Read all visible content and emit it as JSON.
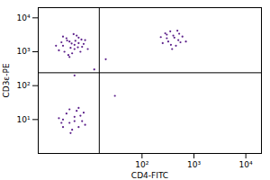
{
  "chart_data": {
    "type": "scatter",
    "x_label": "CD4-FITC",
    "y_label": "CD3ε-PE",
    "log": true,
    "grid": false,
    "color": "#5b1f8a",
    "xlim": [
      1,
      20000
    ],
    "ylim": [
      1,
      20000
    ],
    "xticks": [
      {
        "value": 100,
        "label": "10²"
      },
      {
        "value": 1000,
        "label": "10³"
      },
      {
        "value": 10000,
        "label": "10⁴"
      }
    ],
    "yticks": [
      {
        "value": 10,
        "label": "10¹"
      },
      {
        "value": 100,
        "label": "10²"
      },
      {
        "value": 1000,
        "label": "10³"
      },
      {
        "value": 10000,
        "label": "10⁴"
      }
    ],
    "gates": {
      "x": 15,
      "y": 240
    },
    "x": [
      3,
      4,
      5,
      6,
      3.5,
      4.5,
      7,
      2.5,
      5.5,
      8,
      4,
      6.5,
      3,
      5,
      4.2,
      7.5,
      2.8,
      6,
      3.8,
      5.2,
      9,
      4.8,
      3.2,
      6.8,
      2.2,
      5.8,
      4.4,
      3.6,
      300,
      400,
      250,
      500,
      350,
      450,
      600,
      280,
      380,
      520,
      320,
      420,
      700,
      230,
      480,
      360,
      550,
      300,
      3,
      4,
      5,
      6,
      3.5,
      4.5,
      7,
      2.5,
      5.5,
      8,
      4,
      6.5,
      3,
      5,
      4.2,
      7.5,
      2.8,
      6,
      12,
      5,
      20,
      30
    ],
    "values": [
      1500,
      2000,
      1200,
      1800,
      2500,
      900,
      1400,
      1100,
      3000,
      2200,
      700,
      1000,
      2800,
      1600,
      1300,
      1700,
      1900,
      2600,
      800,
      2100,
      1200,
      3300,
      1000,
      2300,
      1500,
      1350,
      1750,
      2150,
      2500,
      3000,
      1800,
      2200,
      4000,
      1500,
      2800,
      3500,
      1200,
      3400,
      2000,
      2600,
      2000,
      2700,
      4200,
      1600,
      1900,
      3200,
      10,
      8,
      12,
      6,
      15,
      5,
      9,
      11,
      18,
      7,
      20,
      13,
      6,
      9,
      4,
      16,
      8,
      22,
      300,
      200,
      600,
      50
    ]
  }
}
